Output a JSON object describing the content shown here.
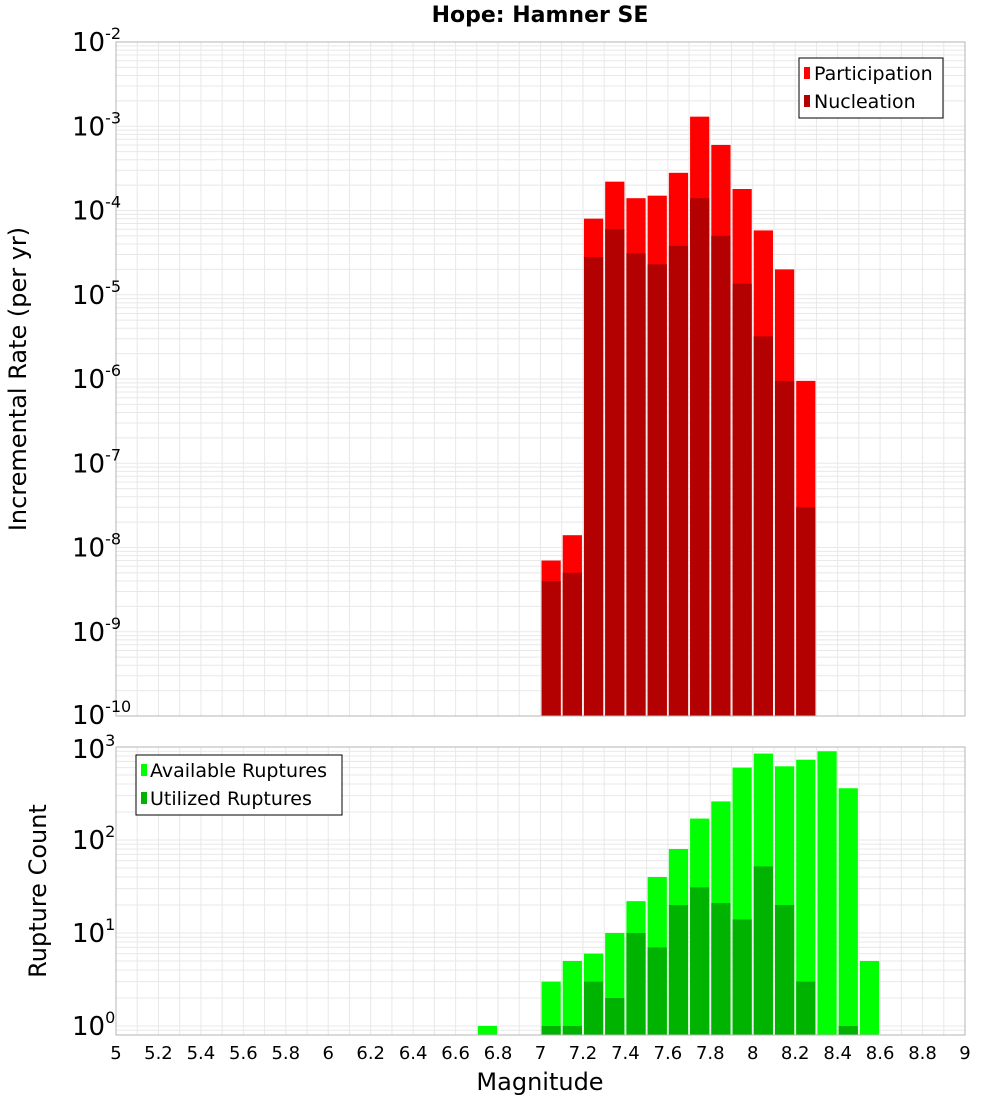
{
  "title": "Hope: Hamner SE",
  "colors": {
    "participation": "#ff0000",
    "nucleation": "#b30000",
    "available": "#00ff00",
    "utilized": "#00b300",
    "grid": "#e8e8e8",
    "frame": "#b4b4b4"
  },
  "chart_data": [
    {
      "type": "bar",
      "title": "Hope: Hamner SE",
      "xlabel": "",
      "ylabel": "Incremental Rate (per yr)",
      "yscale": "log",
      "xlim": [
        5,
        9
      ],
      "ylim": [
        1e-10,
        0.01
      ],
      "y_ticks": [
        {
          "base": "10",
          "exp": "-10",
          "value": 1e-10
        },
        {
          "base": "10",
          "exp": "-9",
          "value": 1e-09
        },
        {
          "base": "10",
          "exp": "-8",
          "value": 1e-08
        },
        {
          "base": "10",
          "exp": "-7",
          "value": 1e-07
        },
        {
          "base": "10",
          "exp": "-6",
          "value": 1e-06
        },
        {
          "base": "10",
          "exp": "-5",
          "value": 1e-05
        },
        {
          "base": "10",
          "exp": "-4",
          "value": 0.0001
        },
        {
          "base": "10",
          "exp": "-3",
          "value": 0.001
        },
        {
          "base": "10",
          "exp": "-2",
          "value": 0.01
        }
      ],
      "legend": {
        "position": "top-right",
        "entries": [
          "Participation",
          "Nucleation"
        ]
      },
      "grid": true,
      "x": [
        7.05,
        7.15,
        7.25,
        7.35,
        7.45,
        7.55,
        7.65,
        7.75,
        7.85,
        7.95,
        8.05,
        8.15,
        8.25
      ],
      "series": [
        {
          "name": "Participation",
          "values": [
            7e-09,
            1.4e-08,
            8e-05,
            0.00022,
            0.00014,
            0.00015,
            0.00028,
            0.0013,
            0.0006,
            0.00018,
            5.8e-05,
            2e-05,
            9.5e-07
          ]
        },
        {
          "name": "Nucleation",
          "values": [
            4e-09,
            5e-09,
            2.8e-05,
            6e-05,
            3.1e-05,
            2.3e-05,
            3.8e-05,
            0.00014,
            5e-05,
            1.35e-05,
            3.2e-06,
            9.5e-07,
            3e-08
          ]
        }
      ]
    },
    {
      "type": "bar",
      "xlabel": "Magnitude",
      "ylabel": "Rupture Count",
      "yscale": "log",
      "xlim": [
        5,
        9
      ],
      "ylim": [
        0.8,
        1000
      ],
      "y_ticks": [
        {
          "base": "10",
          "exp": "0",
          "value": 1
        },
        {
          "base": "10",
          "exp": "1",
          "value": 10
        },
        {
          "base": "10",
          "exp": "2",
          "value": 100
        },
        {
          "base": "10",
          "exp": "3",
          "value": 1000
        }
      ],
      "x_ticks": [
        "5",
        "5.2",
        "5.4",
        "5.6",
        "5.8",
        "6",
        "6.2",
        "6.4",
        "6.6",
        "6.8",
        "7",
        "7.2",
        "7.4",
        "7.6",
        "7.8",
        "8",
        "8.2",
        "8.4",
        "8.6",
        "8.8",
        "9"
      ],
      "legend": {
        "position": "top-left",
        "entries": [
          "Available Ruptures",
          "Utilized Ruptures"
        ]
      },
      "grid": true,
      "x": [
        6.75,
        7.05,
        7.15,
        7.25,
        7.35,
        7.45,
        7.55,
        7.65,
        7.75,
        7.85,
        7.95,
        8.05,
        8.15,
        8.25,
        8.35,
        8.45,
        8.55
      ],
      "series": [
        {
          "name": "Available Ruptures",
          "values": [
            1,
            3,
            5,
            6,
            10,
            22,
            40,
            80,
            170,
            260,
            600,
            850,
            620,
            730,
            900,
            360,
            5
          ]
        },
        {
          "name": "Utilized Ruptures",
          "values": [
            0,
            1,
            1,
            3,
            2,
            10,
            7,
            20,
            31,
            21,
            14,
            52,
            20,
            3,
            0,
            1,
            0
          ]
        }
      ]
    }
  ]
}
